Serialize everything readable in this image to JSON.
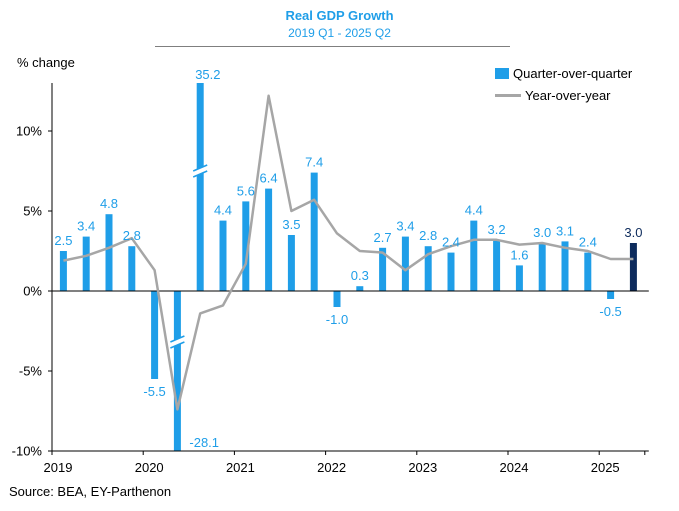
{
  "colors": {
    "bar": "#1f9ee8",
    "highlight_bar": "#0d2b5c",
    "line": "#a6a6a6",
    "axis": "#000000",
    "title": "#1f9ee8"
  },
  "source": "Source: BEA, EY-Parthenon",
  "chart_data": {
    "type": "bar",
    "title": "Real GDP Growth",
    "subtitle": "2019 Q1 - 2025 Q2",
    "ylabel": "% change",
    "xlabel": "",
    "ylim": [
      -10,
      13
    ],
    "yticks": [
      -10,
      -5,
      0,
      5,
      10
    ],
    "ytick_labels": [
      "-10%",
      "-5%",
      "0%",
      "5%",
      "10%"
    ],
    "x_year_labels": [
      "2019",
      "2020",
      "2021",
      "2022",
      "2023",
      "2024",
      "2025"
    ],
    "categories": [
      "2019 Q1",
      "2019 Q2",
      "2019 Q3",
      "2019 Q4",
      "2020 Q1",
      "2020 Q2",
      "2020 Q3",
      "2020 Q4",
      "2021 Q1",
      "2021 Q2",
      "2021 Q3",
      "2021 Q4",
      "2022 Q1",
      "2022 Q2",
      "2022 Q3",
      "2022 Q4",
      "2023 Q1",
      "2023 Q2",
      "2023 Q3",
      "2023 Q4",
      "2024 Q1",
      "2024 Q2",
      "2024 Q3",
      "2024 Q4",
      "2025 Q1",
      "2025 Q2"
    ],
    "series": [
      {
        "name": "Quarter-over-quarter",
        "kind": "bar",
        "values": [
          2.5,
          3.4,
          4.8,
          2.8,
          -5.5,
          -28.1,
          35.2,
          4.4,
          5.6,
          6.4,
          3.5,
          7.4,
          -1.0,
          0.3,
          2.7,
          3.4,
          2.8,
          2.4,
          4.4,
          3.2,
          1.6,
          3.0,
          3.1,
          2.4,
          -0.5,
          3.0
        ],
        "data_labels": [
          "2.5",
          "3.4",
          "4.8",
          "2.8",
          "-5.5",
          "-28.1",
          "35.2",
          "4.4",
          "5.6",
          "6.4",
          "3.5",
          "7.4",
          "-1.0",
          "0.3",
          "2.7",
          "3.4",
          "2.8",
          "2.4",
          "4.4",
          "3.2",
          "1.6",
          "3.0",
          "3.1",
          "2.4",
          "-0.5",
          "3.0"
        ],
        "clipped_labels": [
          5,
          6
        ],
        "highlight_index": 25
      },
      {
        "name": "Year-over-year",
        "kind": "line",
        "values": [
          1.9,
          2.2,
          2.7,
          3.3,
          1.3,
          -7.4,
          -1.4,
          -0.9,
          1.7,
          12.2,
          5.0,
          5.7,
          3.6,
          2.5,
          2.4,
          1.3,
          2.3,
          2.8,
          3.2,
          3.2,
          2.9,
          3.0,
          2.7,
          2.5,
          2.0,
          2.0
        ]
      }
    ],
    "legend": [
      "Quarter-over-quarter",
      "Year-over-year"
    ],
    "legend_position": "top-right",
    "grid": false
  }
}
